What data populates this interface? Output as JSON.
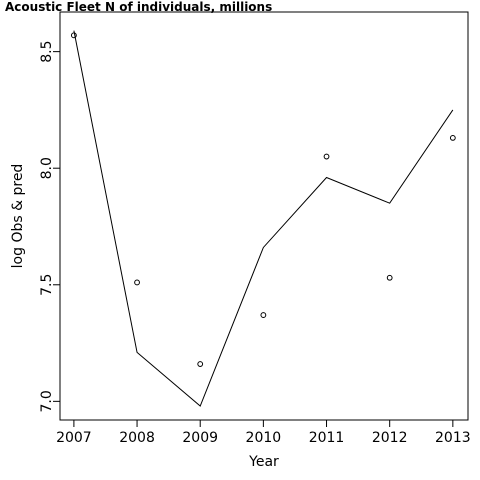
{
  "chart_data": {
    "type": "line",
    "title": "Acoustic Fleet   N of individuals, millions",
    "xlabel": "Year",
    "ylabel": "log Obs & pred",
    "x": [
      2007,
      2008,
      2009,
      2010,
      2011,
      2012,
      2013
    ],
    "xticks": [
      "2007",
      "2008",
      "2009",
      "2010",
      "2011",
      "2012",
      "2013"
    ],
    "yticks": [
      "7.0",
      "7.5",
      "8.0",
      "8.5"
    ],
    "xlim": [
      2006.78,
      2013.24
    ],
    "ylim": [
      6.92,
      8.67
    ],
    "grid": false,
    "series": [
      {
        "style": "line",
        "values": [
          8.59,
          7.21,
          6.98,
          7.66,
          7.96,
          7.85,
          8.25
        ]
      },
      {
        "style": "points",
        "values": [
          8.57,
          7.51,
          7.16,
          7.37,
          8.05,
          7.53,
          8.13
        ]
      }
    ]
  }
}
